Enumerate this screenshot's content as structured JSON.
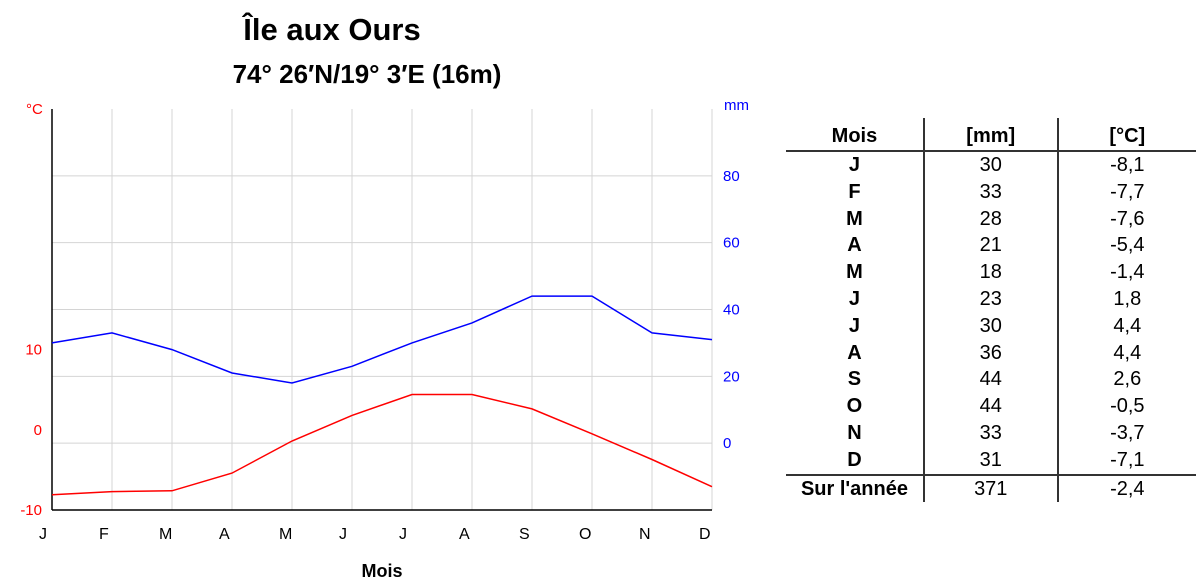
{
  "chart_data": {
    "type": "line",
    "title": "Île aux Ours",
    "subtitle": "74° 26′N/19° 3′E (16m)",
    "xlabel": "Mois",
    "categories": [
      "J",
      "F",
      "M",
      "A",
      "M",
      "J",
      "J",
      "A",
      "S",
      "O",
      "N",
      "D"
    ],
    "y_left": {
      "unit": "°C",
      "ticks": [
        "10",
        "0",
        "-10"
      ],
      "range": [
        -10,
        40
      ]
    },
    "y_right": {
      "unit": "mm",
      "ticks": [
        "80",
        "60",
        "40",
        "20",
        "0"
      ],
      "range": [
        -20,
        100
      ]
    },
    "grid": true,
    "series": [
      {
        "key": "precipitation",
        "axis": "right",
        "color": "#0000ff",
        "values": [
          30,
          33,
          28,
          21,
          18,
          23,
          30,
          36,
          44,
          44,
          33,
          31
        ]
      },
      {
        "key": "temperature",
        "axis": "left",
        "color": "#ff0000",
        "values": [
          -8.1,
          -7.7,
          -7.6,
          -5.4,
          -1.4,
          1.8,
          4.4,
          4.4,
          2.6,
          -0.5,
          -3.7,
          -7.1
        ]
      }
    ]
  },
  "table": {
    "headers": {
      "month": "Mois",
      "mm": "[mm]",
      "temp": "[°C]"
    },
    "rows": [
      {
        "month": "J",
        "mm": "30",
        "temp": "-8,1"
      },
      {
        "month": "F",
        "mm": "33",
        "temp": "-7,7"
      },
      {
        "month": "M",
        "mm": "28",
        "temp": "-7,6"
      },
      {
        "month": "A",
        "mm": "21",
        "temp": "-5,4"
      },
      {
        "month": "M",
        "mm": "18",
        "temp": "-1,4"
      },
      {
        "month": "J",
        "mm": "23",
        "temp": "1,8"
      },
      {
        "month": "J",
        "mm": "30",
        "temp": "4,4"
      },
      {
        "month": "A",
        "mm": "36",
        "temp": "4,4"
      },
      {
        "month": "S",
        "mm": "44",
        "temp": "2,6"
      },
      {
        "month": "O",
        "mm": "44",
        "temp": "-0,5"
      },
      {
        "month": "N",
        "mm": "33",
        "temp": "-3,7"
      },
      {
        "month": "D",
        "mm": "31",
        "temp": "-7,1"
      }
    ],
    "total": {
      "month": "Sur l'année",
      "mm": "371",
      "temp": "-2,4"
    }
  }
}
